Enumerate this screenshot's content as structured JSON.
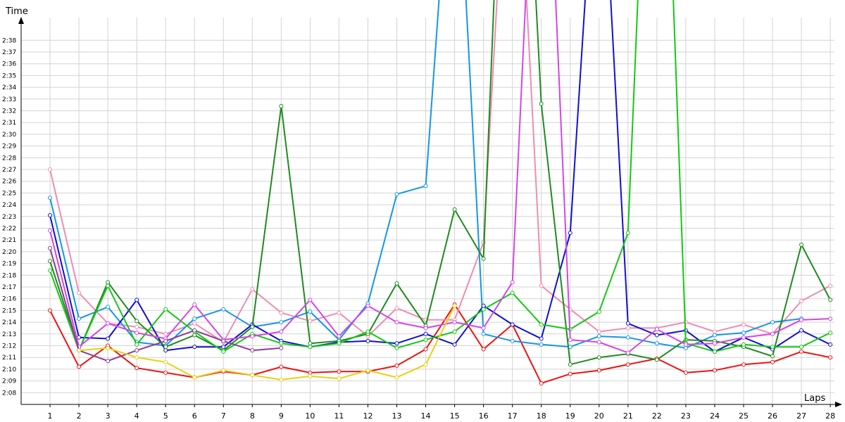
{
  "chart_data": {
    "type": "line",
    "ylabel": "Time",
    "xlabel": "Laps",
    "ylim_seconds": [
      127,
      159
    ],
    "xlim": [
      0,
      28
    ],
    "grid": true,
    "x": [
      1,
      2,
      3,
      4,
      5,
      6,
      7,
      8,
      9,
      10,
      11,
      12,
      13,
      14,
      15,
      16,
      17,
      18,
      19,
      20,
      21,
      22,
      23,
      24,
      25,
      26,
      27,
      28
    ],
    "y_ticks": [
      "2:08",
      "2:09",
      "2:10",
      "2:11",
      "2:12",
      "2:13",
      "2:14",
      "2:15",
      "2:16",
      "2:17",
      "2:18",
      "2:19",
      "2:20",
      "2:21",
      "2:22",
      "2:23",
      "2:24",
      "2:25",
      "2:26",
      "2:27",
      "2:28",
      "2:29",
      "2:30",
      "2:31",
      "2:32",
      "2:33",
      "2:34",
      "2:35",
      "2:36",
      "2:37",
      "2:38"
    ],
    "series": [
      {
        "color": "#ee1111",
        "values": [
          135.0,
          130.2,
          132.0,
          130.1,
          129.7,
          129.3,
          129.8,
          129.5,
          130.2,
          129.7,
          129.8,
          129.8,
          130.3,
          131.7,
          135.5,
          131.7,
          133.8,
          128.8,
          129.6,
          129.9,
          130.4,
          130.9,
          129.7,
          129.9,
          130.4,
          130.6,
          131.5,
          131.0
        ]
      },
      {
        "color": "#f08cb0",
        "values": [
          147.0,
          136.5,
          133.9,
          133.6,
          133.0,
          133.9,
          132.3,
          136.8,
          134.8,
          134.1,
          134.8,
          132.8,
          135.2,
          134.2,
          134.2,
          140.8,
          185.0,
          137.1,
          135.1,
          133.2,
          133.5,
          133.5,
          134.0,
          133.2,
          133.8,
          133.0,
          135.8,
          137.1
        ]
      },
      {
        "color": "#1496e6",
        "values": [
          144.6,
          134.3,
          135.3,
          132.3,
          132.0,
          134.3,
          135.1,
          133.6,
          134.0,
          134.9,
          132.5,
          135.6,
          144.9,
          145.6,
          180.0,
          133.0,
          132.4,
          132.1,
          131.9,
          132.8,
          132.7,
          132.2,
          131.8,
          132.9,
          133.1,
          134.0,
          134.3,
          null
        ]
      },
      {
        "color": "#1010d2",
        "values": [
          143.1,
          132.7,
          132.6,
          135.9,
          131.6,
          131.9,
          131.9,
          133.8,
          132.4,
          131.9,
          132.3,
          132.4,
          132.2,
          133.0,
          132.1,
          135.4,
          133.8,
          132.6,
          141.6,
          180.0,
          133.9,
          132.9,
          133.3,
          131.5,
          132.7,
          131.7,
          133.3,
          132.1
        ]
      },
      {
        "color": "#1e8c1e",
        "values": [
          139.2,
          131.6,
          137.4,
          134.1,
          131.9,
          132.9,
          131.6,
          133.6,
          152.4,
          132.2,
          132.4,
          133.0,
          137.3,
          133.7,
          143.6,
          139.4,
          200.0,
          152.6,
          130.4,
          131.0,
          131.3,
          130.8,
          132.5,
          132.4,
          131.9,
          131.1,
          140.6,
          135.9
        ]
      },
      {
        "color": "#14c814",
        "values": [
          138.4,
          131.6,
          137.1,
          132.1,
          135.1,
          133.2,
          131.5,
          133.0,
          132.2,
          131.9,
          132.2,
          133.2,
          131.8,
          132.5,
          133.2,
          135.1,
          136.5,
          133.8,
          133.4,
          134.9,
          141.6,
          200.0,
          132.2,
          131.5,
          132.1,
          131.9,
          131.9,
          133.1
        ]
      },
      {
        "color": "#d246e6",
        "values": [
          141.8,
          131.9,
          133.9,
          133.1,
          132.6,
          135.5,
          132.5,
          132.8,
          133.2,
          135.9,
          132.8,
          135.4,
          134.0,
          133.5,
          134.0,
          133.5,
          137.4,
          190.0,
          132.5,
          132.3,
          131.4,
          133.4,
          132.1,
          132.2,
          132.7,
          133.0,
          134.2,
          134.3
        ]
      },
      {
        "color": "#8c3c96",
        "values": [
          140.3,
          131.6,
          130.7,
          131.6,
          132.4,
          133.3,
          132.4,
          131.6,
          131.8,
          null,
          null,
          null,
          null,
          null,
          null,
          null,
          null,
          null,
          null,
          null,
          null,
          null,
          null,
          null,
          null,
          null,
          null,
          null
        ]
      },
      {
        "color": "#e6d214",
        "values": [
          null,
          131.6,
          131.8,
          131.0,
          130.6,
          129.3,
          129.9,
          129.5,
          129.1,
          129.4,
          129.2,
          129.9,
          129.3,
          130.4,
          135.4,
          null,
          null,
          null,
          null,
          null,
          null,
          null,
          null,
          null,
          null,
          null,
          null,
          null
        ]
      }
    ]
  }
}
